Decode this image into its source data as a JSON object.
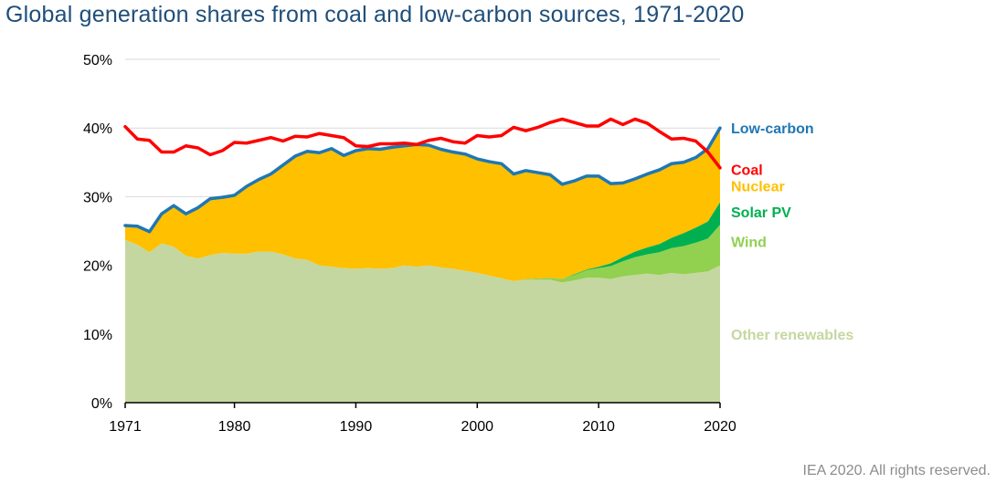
{
  "title": "Global generation shares from coal and low-carbon sources, 1971-2020",
  "credit": "IEA 2020. All rights reserved.",
  "chart_data": {
    "type": "area",
    "title": "Global generation shares from coal and low-carbon sources, 1971-2020",
    "xlabel": "",
    "ylabel": "",
    "xlim": [
      1971,
      2020
    ],
    "ylim": [
      0,
      50
    ],
    "x_ticks": [
      1971,
      1980,
      1990,
      2000,
      2010,
      2020
    ],
    "x_tick_labels": [
      "1971",
      "1980",
      "1990",
      "2000",
      "2010",
      "2020"
    ],
    "y_ticks": [
      0,
      10,
      20,
      30,
      40,
      50
    ],
    "y_tick_labels": [
      "0%",
      "10%",
      "20%",
      "30%",
      "40%",
      "50%"
    ],
    "grid": "horizontal",
    "stacked_areas": [
      {
        "name": "Other renewables",
        "color": "#c5d7a0",
        "values": [
          23.7,
          23.0,
          21.9,
          23.2,
          22.7,
          21.4,
          21.0,
          21.5,
          21.8,
          21.7,
          21.7,
          22.0,
          22.0,
          21.6,
          21.0,
          20.8,
          20.0,
          19.8,
          19.6,
          19.5,
          19.6,
          19.5,
          19.6,
          20.0,
          19.8,
          20.0,
          19.7,
          19.5,
          19.2,
          18.9,
          18.5,
          18.1,
          17.7,
          17.9,
          17.9,
          17.9,
          17.5,
          17.8,
          18.2,
          18.2,
          18.0,
          18.4,
          18.6,
          18.8,
          18.6,
          18.9,
          18.7,
          18.9,
          19.1,
          20.0
        ]
      },
      {
        "name": "Wind",
        "color": "#92d050",
        "values": [
          0,
          0,
          0,
          0,
          0,
          0,
          0,
          0,
          0,
          0,
          0,
          0,
          0,
          0,
          0,
          0,
          0,
          0,
          0,
          0,
          0,
          0,
          0,
          0,
          0,
          0,
          0,
          0,
          0,
          0,
          0,
          0,
          0,
          0.1,
          0.2,
          0.3,
          0.5,
          0.8,
          1.1,
          1.4,
          1.9,
          2.2,
          2.6,
          2.8,
          3.3,
          3.6,
          4.1,
          4.4,
          4.8,
          5.9
        ]
      },
      {
        "name": "Solar PV",
        "color": "#00b050",
        "values": [
          0,
          0,
          0,
          0,
          0,
          0,
          0,
          0,
          0,
          0,
          0,
          0,
          0,
          0,
          0,
          0,
          0,
          0,
          0,
          0,
          0,
          0,
          0,
          0,
          0,
          0,
          0,
          0,
          0,
          0,
          0,
          0,
          0,
          0,
          0,
          0,
          0,
          0.1,
          0.1,
          0.2,
          0.4,
          0.6,
          0.8,
          1.0,
          1.2,
          1.5,
          1.9,
          2.2,
          2.5,
          3.3
        ]
      },
      {
        "name": "Nuclear",
        "color": "#ffc000",
        "values": [
          2.1,
          2.7,
          3.0,
          4.3,
          6.0,
          6.1,
          7.4,
          8.2,
          8.1,
          8.5,
          9.8,
          10.5,
          11.3,
          13.0,
          14.9,
          15.8,
          16.4,
          17.2,
          16.4,
          17.2,
          17.4,
          17.4,
          17.6,
          17.4,
          17.8,
          17.5,
          17.2,
          17.0,
          17.0,
          16.6,
          16.6,
          16.7,
          15.6,
          15.8,
          15.4,
          15.0,
          13.8,
          13.6,
          13.6,
          13.2,
          11.6,
          10.8,
          10.6,
          10.7,
          10.8,
          10.8,
          10.3,
          10.2,
          10.6,
          10.8
        ]
      }
    ],
    "lines": [
      {
        "name": "Low-carbon",
        "color": "#1f77b4",
        "values": [
          25.8,
          25.7,
          24.9,
          27.5,
          28.7,
          27.5,
          28.4,
          29.7,
          29.9,
          30.2,
          31.5,
          32.5,
          33.3,
          34.6,
          35.9,
          36.6,
          36.4,
          37.0,
          36.0,
          36.7,
          37.0,
          36.9,
          37.2,
          37.4,
          37.6,
          37.5,
          36.9,
          36.5,
          36.2,
          35.5,
          35.1,
          34.8,
          33.3,
          33.8,
          33.5,
          33.2,
          31.8,
          32.3,
          33.0,
          33.0,
          31.9,
          32.0,
          32.6,
          33.3,
          33.9,
          34.8,
          35.0,
          35.7,
          37.0,
          40.0
        ]
      },
      {
        "name": "Coal",
        "color": "#ff0000",
        "values": [
          40.2,
          38.4,
          38.2,
          36.5,
          36.5,
          37.4,
          37.1,
          36.1,
          36.7,
          37.9,
          37.8,
          38.2,
          38.6,
          38.1,
          38.8,
          38.7,
          39.2,
          38.9,
          38.6,
          37.4,
          37.3,
          37.7,
          37.7,
          37.8,
          37.6,
          38.2,
          38.5,
          38.0,
          37.8,
          38.9,
          38.7,
          38.9,
          40.1,
          39.6,
          40.1,
          40.8,
          41.3,
          40.8,
          40.3,
          40.3,
          41.3,
          40.5,
          41.3,
          40.7,
          39.5,
          38.4,
          38.5,
          38.1,
          36.5,
          34.2
        ]
      }
    ],
    "series_labels": [
      {
        "name": "Low-carbon",
        "color": "#1f77b4",
        "y": 40.0
      },
      {
        "name": "Coal",
        "color": "#ff0000",
        "y": 34.0
      },
      {
        "name": "Nuclear",
        "color": "#ffc000",
        "y": 31.6
      },
      {
        "name": "Solar PV",
        "color": "#00b050",
        "y": 27.8
      },
      {
        "name": "Wind",
        "color": "#92d050",
        "y": 23.5
      },
      {
        "name": "Other renewables",
        "color": "#c5d7a0",
        "y": 10.0
      }
    ]
  }
}
